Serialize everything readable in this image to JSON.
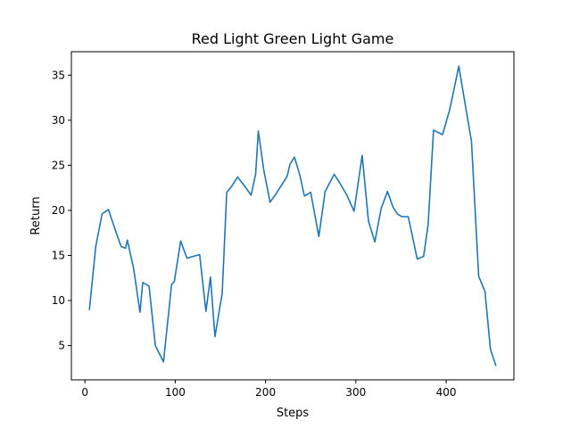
{
  "chart_data": {
    "type": "line",
    "title": "Red Light Green Light Game",
    "xlabel": "Steps",
    "ylabel": "Return",
    "xlim": [
      -15,
      475
    ],
    "ylim": [
      1.2,
      37.6
    ],
    "x_ticks": [
      0,
      100,
      200,
      300,
      400
    ],
    "y_ticks": [
      5,
      10,
      15,
      20,
      25,
      30,
      35
    ],
    "grid": false,
    "line_color": "#1f77b4",
    "series": [
      {
        "x": [
          5,
          12,
          19,
          26,
          33,
          40,
          45,
          47,
          54,
          61,
          64,
          71,
          78,
          87,
          96,
          99,
          106,
          113,
          120,
          127,
          134,
          139,
          144,
          152,
          157,
          162,
          169,
          176,
          184,
          189,
          192,
          198,
          205,
          212,
          219,
          224,
          227,
          232,
          238,
          243,
          250,
          259,
          266,
          276,
          283,
          290,
          298,
          307,
          314,
          321,
          328,
          335,
          341,
          346,
          351,
          358,
          368,
          375,
          380,
          386,
          396,
          404,
          414,
          422,
          428,
          436,
          443,
          449,
          455
        ],
        "values": [
          9.0,
          16.0,
          19.6,
          20.1,
          18.0,
          16.0,
          15.8,
          16.7,
          13.5,
          8.7,
          12.0,
          11.6,
          5.0,
          3.2,
          11.8,
          12.1,
          16.6,
          14.7,
          14.9,
          15.1,
          8.8,
          12.6,
          6.0,
          10.8,
          22.0,
          22.6,
          23.7,
          22.8,
          21.7,
          24.0,
          28.8,
          24.5,
          20.9,
          21.9,
          23.0,
          23.8,
          25.1,
          25.9,
          23.9,
          21.6,
          22.0,
          17.1,
          22.1,
          24.0,
          22.9,
          21.7,
          19.9,
          26.1,
          18.8,
          16.5,
          20.2,
          22.1,
          20.4,
          19.6,
          19.3,
          19.3,
          14.6,
          14.9,
          18.4,
          28.9,
          28.4,
          31.2,
          36.0,
          31.2,
          27.7,
          12.7,
          11.0,
          4.6,
          2.8
        ]
      }
    ]
  }
}
